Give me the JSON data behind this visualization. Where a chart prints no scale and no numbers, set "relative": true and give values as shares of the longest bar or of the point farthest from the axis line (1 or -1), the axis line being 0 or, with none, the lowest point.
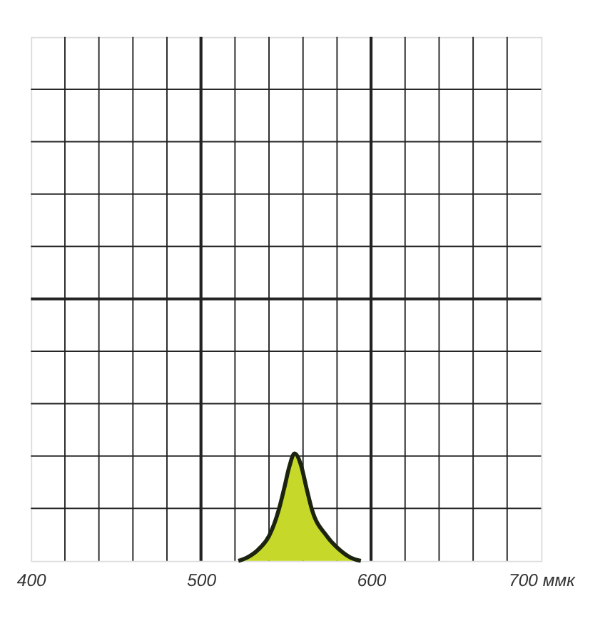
{
  "chart_data": {
    "type": "area",
    "relative": true,
    "x": [
      522,
      527,
      534,
      540,
      546,
      549,
      552,
      555,
      559,
      562,
      565,
      574,
      581,
      588,
      594
    ],
    "xlim": [
      400,
      700
    ],
    "xticks": [
      400,
      500,
      600,
      {
        "value": 700,
        "label": "700 ммк"
      }
    ],
    "grid": true,
    "series": [
      {
        "color": "#c6d92a",
        "values": [
          0,
          0.03,
          0.11,
          0.23,
          0.49,
          0.68,
          0.88,
          1,
          0.88,
          0.68,
          0.49,
          0.23,
          0.11,
          0.03,
          0
        ]
      }
    ]
  }
}
